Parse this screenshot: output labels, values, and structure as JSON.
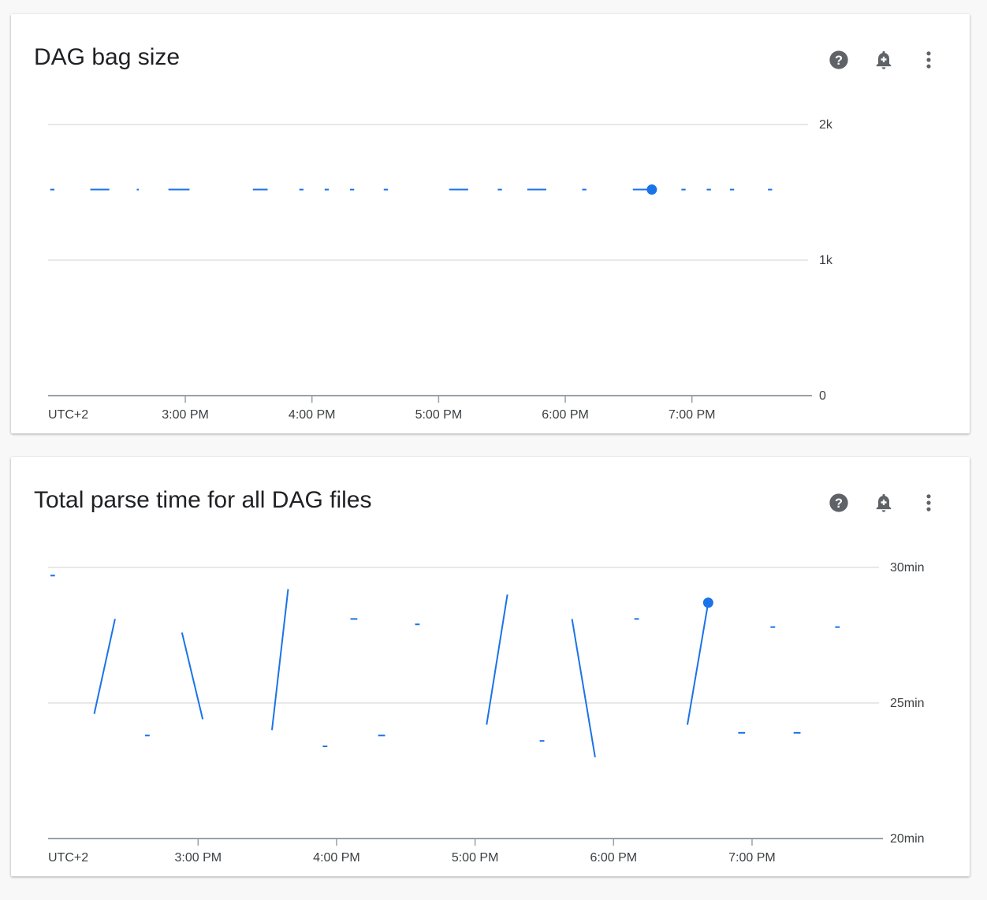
{
  "accent_color": "#1a73e8",
  "cards": [
    {
      "title": "DAG bag size",
      "icons": [
        "help-icon",
        "add-alert-icon",
        "more-vert-icon"
      ]
    },
    {
      "title": "Total parse time for all DAG files",
      "icons": [
        "help-icon",
        "add-alert-icon",
        "more-vert-icon"
      ]
    }
  ],
  "chart_data": [
    {
      "type": "line",
      "title": "DAG bag size",
      "timezone_label": "UTC+2",
      "xlim": [
        "13:55",
        "19:55"
      ],
      "x_ticks": [
        "15:00",
        "16:00",
        "17:00",
        "18:00",
        "19:00"
      ],
      "x_tick_labels": [
        "3:00 PM",
        "4:00 PM",
        "5:00 PM",
        "6:00 PM",
        "7:00 PM"
      ],
      "ylim": [
        0,
        2000
      ],
      "y_ticks": [
        0,
        1000,
        2000
      ],
      "y_tick_labels": [
        "0",
        "1k",
        "2k"
      ],
      "grid": true,
      "highlighted_point": {
        "x": "18:41",
        "y": 1520
      },
      "segments": [
        [
          [
            "13:56",
            1520
          ],
          [
            "13:58",
            1520
          ]
        ],
        [
          [
            "14:15",
            1520
          ],
          [
            "14:24",
            1520
          ]
        ],
        [
          [
            "14:37",
            1520
          ],
          [
            "14:38",
            1520
          ]
        ],
        [
          [
            "14:52",
            1520
          ],
          [
            "15:02",
            1520
          ]
        ],
        [
          [
            "15:32",
            1520
          ],
          [
            "15:39",
            1520
          ]
        ],
        [
          [
            "15:54",
            1520
          ],
          [
            "15:56",
            1520
          ]
        ],
        [
          [
            "16:06",
            1520
          ],
          [
            "16:08",
            1520
          ]
        ],
        [
          [
            "16:18",
            1520
          ],
          [
            "16:20",
            1520
          ]
        ],
        [
          [
            "16:34",
            1520
          ],
          [
            "16:36",
            1520
          ]
        ],
        [
          [
            "17:05",
            1520
          ],
          [
            "17:14",
            1520
          ]
        ],
        [
          [
            "17:28",
            1520
          ],
          [
            "17:30",
            1520
          ]
        ],
        [
          [
            "17:42",
            1520
          ],
          [
            "17:51",
            1520
          ]
        ],
        [
          [
            "18:08",
            1520
          ],
          [
            "18:10",
            1520
          ]
        ],
        [
          [
            "18:32",
            1520
          ],
          [
            "18:41",
            1520
          ]
        ],
        [
          [
            "18:55",
            1520
          ],
          [
            "18:57",
            1520
          ]
        ],
        [
          [
            "19:07",
            1520
          ],
          [
            "19:09",
            1520
          ]
        ],
        [
          [
            "19:18",
            1520
          ],
          [
            "19:20",
            1520
          ]
        ],
        [
          [
            "19:36",
            1520
          ],
          [
            "19:38",
            1520
          ]
        ]
      ]
    },
    {
      "type": "line",
      "title": "Total parse time for all DAG files",
      "timezone_label": "UTC+2",
      "xlim": [
        "13:55",
        "19:55"
      ],
      "x_ticks": [
        "15:00",
        "16:00",
        "17:00",
        "18:00",
        "19:00"
      ],
      "x_tick_labels": [
        "3:00 PM",
        "4:00 PM",
        "5:00 PM",
        "6:00 PM",
        "7:00 PM"
      ],
      "ylim": [
        20,
        30
      ],
      "y_unit": "min",
      "y_ticks": [
        20,
        25,
        30
      ],
      "y_tick_labels": [
        "20min",
        "25min",
        "30min"
      ],
      "grid": true,
      "highlighted_point": {
        "x": "18:41",
        "y": 28.7
      },
      "segments": [
        [
          [
            "13:56",
            29.7
          ],
          [
            "13:58",
            29.7
          ]
        ],
        [
          [
            "14:15",
            24.6
          ],
          [
            "14:24",
            28.1
          ]
        ],
        [
          [
            "14:37",
            23.8
          ],
          [
            "14:39",
            23.8
          ]
        ],
        [
          [
            "14:53",
            27.6
          ],
          [
            "15:02",
            24.4
          ]
        ],
        [
          [
            "15:32",
            24.0
          ],
          [
            "15:39",
            29.2
          ]
        ],
        [
          [
            "15:54",
            23.4
          ],
          [
            "15:56",
            23.4
          ]
        ],
        [
          [
            "16:06",
            28.1
          ],
          [
            "16:09",
            28.1
          ]
        ],
        [
          [
            "16:18",
            23.8
          ],
          [
            "16:21",
            23.8
          ]
        ],
        [
          [
            "16:34",
            27.9
          ],
          [
            "16:36",
            27.9
          ]
        ],
        [
          [
            "17:05",
            24.2
          ],
          [
            "17:14",
            29.0
          ]
        ],
        [
          [
            "17:28",
            23.6
          ],
          [
            "17:30",
            23.6
          ]
        ],
        [
          [
            "17:42",
            28.1
          ],
          [
            "17:52",
            23.0
          ]
        ],
        [
          [
            "18:09",
            28.1
          ],
          [
            "18:11",
            28.1
          ]
        ],
        [
          [
            "18:32",
            24.2
          ],
          [
            "18:41",
            28.7
          ]
        ],
        [
          [
            "18:54",
            23.9
          ],
          [
            "18:57",
            23.9
          ]
        ],
        [
          [
            "19:08",
            27.8
          ],
          [
            "19:10",
            27.8
          ]
        ],
        [
          [
            "19:18",
            23.9
          ],
          [
            "19:21",
            23.9
          ]
        ],
        [
          [
            "19:36",
            27.8
          ],
          [
            "19:38",
            27.8
          ]
        ]
      ]
    }
  ]
}
